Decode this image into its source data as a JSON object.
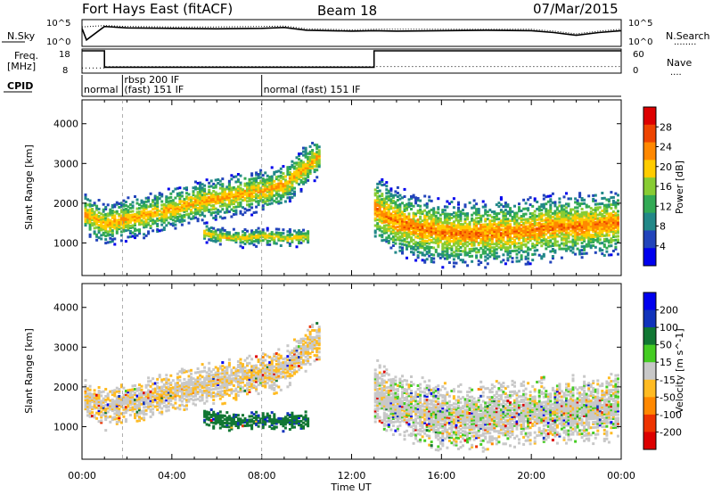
{
  "header": {
    "radar": "Fort Hays East (fitACF)",
    "beam": "Beam 18",
    "date": "07/Mar/2015"
  },
  "noise_panel": {
    "left_label": "N.Sky",
    "left_ticks": [
      "10^5",
      "10^0"
    ],
    "right_label": "N.Search",
    "right_ticks": [
      "10^5",
      "10^0"
    ],
    "legend_line": "........"
  },
  "freq_panel": {
    "left_label_top": "Freq.",
    "left_label_bottom": "[MHz]",
    "left_ticks": [
      "18",
      "8"
    ],
    "right_label": "Nave",
    "right_ticks": [
      "60",
      "0"
    ],
    "legend_line": "...."
  },
  "cpid_panel": {
    "label": "CPID",
    "segments": [
      {
        "text_lines": [
          "normal"
        ],
        "start_hour": 0
      },
      {
        "text_lines": [
          "rbsp 200 IF",
          "(fast) 151 IF"
        ],
        "start_hour": 1.8
      },
      {
        "text_lines": [
          "normal (fast) 151 IF"
        ],
        "start_hour": 8.0
      }
    ]
  },
  "x_axis": {
    "label": "Time UT",
    "ticks": [
      "00:00",
      "04:00",
      "08:00",
      "12:00",
      "16:00",
      "20:00",
      "00:00"
    ],
    "tick_hours": [
      0,
      4,
      8,
      12,
      16,
      20,
      24
    ],
    "range_hours": [
      0,
      24
    ]
  },
  "colors": {
    "power_scale": [
      "#0000ee",
      "#2244bb",
      "#228888",
      "#33aa55",
      "#88cc33",
      "#ffcc00",
      "#ff8800",
      "#ee4400",
      "#dd0000"
    ],
    "velocity_scale": [
      "#0000ee",
      "#1133bb",
      "#117733",
      "#44cc22",
      "#c8c8c8",
      "#ffbb22",
      "#ff8800",
      "#ee3300",
      "#dd0000"
    ]
  },
  "chart_data": [
    {
      "type": "line",
      "name": "noise",
      "series": [
        {
          "name": "N.Sky",
          "x": [
            0,
            0.2,
            1,
            2,
            4,
            6,
            8,
            9,
            10,
            12,
            13,
            14,
            16,
            18,
            20,
            21,
            22,
            23,
            24
          ],
          "y": [
            3.5,
            1.0,
            3.9,
            3.6,
            3.5,
            3.4,
            3.5,
            3.7,
            3.1,
            2.9,
            3.0,
            2.9,
            3.0,
            3.1,
            3.0,
            2.6,
            2.0,
            2.6,
            3.0
          ]
        },
        {
          "name": "N.Search",
          "x": [
            0,
            1,
            2,
            4,
            6,
            8,
            9,
            10,
            12,
            13,
            16,
            20,
            21,
            22,
            23,
            24
          ],
          "y": [
            3.8,
            4.1,
            3.9,
            3.8,
            3.8,
            3.9,
            4.0,
            3.4,
            3.2,
            3.3,
            3.3,
            3.3,
            2.9,
            2.3,
            2.9,
            3.3
          ]
        }
      ],
      "ylim": [
        0,
        5
      ]
    },
    {
      "type": "line",
      "name": "frequency_nave",
      "series": [
        {
          "name": "Freq.",
          "x": [
            0,
            1,
            1,
            13,
            13,
            24
          ],
          "y": [
            18,
            18,
            10,
            10,
            18,
            18
          ]
        },
        {
          "name": "Nave",
          "x": [
            0,
            1,
            1,
            13,
            13,
            24
          ],
          "y": [
            10,
            10,
            14,
            14,
            14,
            14
          ]
        }
      ],
      "ylim_left": [
        8,
        18
      ],
      "ylim_right": [
        0,
        60
      ]
    },
    {
      "type": "heatmap",
      "name": "power",
      "ylabel": "Slant Range [km]",
      "xlabel": "",
      "yticks": [
        1000,
        2000,
        3000,
        4000
      ],
      "ylim": [
        180,
        4600
      ],
      "xlim": [
        0,
        24
      ],
      "colorbar": {
        "title": "Power [dB]",
        "ticks": [
          "28",
          "24",
          "20",
          "16",
          "12",
          "8",
          "4"
        ]
      },
      "bands": [
        {
          "x": [
            0,
            1,
            2,
            3,
            4,
            5,
            6,
            7,
            8,
            9,
            9.8,
            10.5
          ],
          "y": [
            1800,
            1500,
            1650,
            1750,
            1900,
            2050,
            2150,
            2250,
            2350,
            2500,
            2900,
            3200
          ],
          "thickness_km": 700,
          "peak_db": 22
        },
        {
          "x": [
            5.4,
            6,
            7,
            8,
            9,
            10
          ],
          "y": [
            1300,
            1200,
            1150,
            1200,
            1150,
            1200
          ],
          "thickness_km": 300,
          "peak_db": 20
        },
        {
          "x": [
            13,
            14,
            15,
            16,
            17,
            18,
            19,
            20,
            21,
            22,
            23,
            24
          ],
          "y": [
            1900,
            1550,
            1400,
            1300,
            1250,
            1300,
            1300,
            1350,
            1450,
            1450,
            1500,
            1550
          ],
          "thickness_km": 1100,
          "peak_db": 24
        }
      ]
    },
    {
      "type": "heatmap",
      "name": "velocity",
      "ylabel": "Slant Range [km]",
      "xlabel": "Time UT",
      "yticks": [
        1000,
        2000,
        3000,
        4000
      ],
      "ylim": [
        180,
        4600
      ],
      "xlim": [
        0,
        24
      ],
      "colorbar": {
        "title": "Velocity [m s^-1]",
        "ticks": [
          "200",
          "100",
          "50",
          "15",
          "-15",
          "-50",
          "-100",
          "-200"
        ]
      },
      "bands": [
        {
          "x": [
            0,
            1,
            2,
            3,
            4,
            5,
            6,
            7,
            8,
            9,
            9.8,
            10.5
          ],
          "y": [
            1800,
            1500,
            1650,
            1750,
            1900,
            2050,
            2150,
            2250,
            2350,
            2500,
            2900,
            3200
          ],
          "thickness_km": 700,
          "velocity": -10
        },
        {
          "x": [
            5.4,
            6,
            7,
            8,
            9,
            10
          ],
          "y": [
            1300,
            1200,
            1150,
            1200,
            1150,
            1200
          ],
          "thickness_km": 300,
          "velocity": 60
        },
        {
          "x": [
            13,
            14,
            15,
            16,
            17,
            18,
            19,
            20,
            21,
            22,
            23,
            24
          ],
          "y": [
            1900,
            1550,
            1400,
            1300,
            1250,
            1300,
            1300,
            1350,
            1450,
            1450,
            1500,
            1550
          ],
          "thickness_km": 1100,
          "velocity": 0
        }
      ]
    }
  ]
}
